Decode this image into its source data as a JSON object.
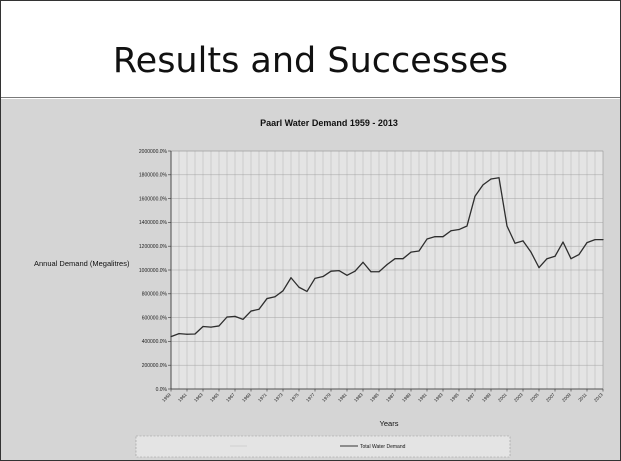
{
  "slide": {
    "title": "Results and Successes"
  },
  "chart_data": {
    "type": "line",
    "title": "Paarl Water Demand 1959 - 2013",
    "xlabel": "Years",
    "ylabel": "Annual Demand (Megalitres)",
    "ylim": [
      0,
      2000000
    ],
    "y_ticks": [
      "0.0%",
      "200000.0%",
      "400000.0%",
      "600000.0%",
      "800000.0%",
      "1000000.0%",
      "1200000.0%",
      "1400000.0%",
      "1600000.0%",
      "1800000.0%",
      "2000000.0%"
    ],
    "x_ticks": [
      "1959",
      "1961",
      "1963",
      "1965",
      "1967",
      "1969",
      "1971",
      "1973",
      "1975",
      "1977",
      "1979",
      "1981",
      "1983",
      "1985",
      "1987",
      "1989",
      "1991",
      "1993",
      "1995",
      "1997",
      "1999",
      "2001",
      "2003",
      "2005",
      "2007",
      "2009",
      "2011",
      "2013"
    ],
    "grid": true,
    "legend_position": "bottom",
    "legend_entries": [
      "Total Water Demand"
    ],
    "series": [
      {
        "name": "Total Water Demand",
        "x": [
          1959,
          1960,
          1961,
          1962,
          1963,
          1964,
          1965,
          1966,
          1967,
          1968,
          1969,
          1970,
          1971,
          1972,
          1973,
          1974,
          1975,
          1976,
          1977,
          1978,
          1979,
          1980,
          1981,
          1982,
          1983,
          1984,
          1985,
          1986,
          1987,
          1988,
          1989,
          1990,
          1991,
          1992,
          1993,
          1994,
          1995,
          1996,
          1997,
          1998,
          1999,
          2000,
          2001,
          2002,
          2003,
          2004,
          2005,
          2006,
          2007,
          2008,
          2009,
          2010,
          2011,
          2012,
          2013
        ],
        "values": [
          440000,
          465000,
          460000,
          462000,
          525000,
          520000,
          530000,
          605000,
          610000,
          585000,
          655000,
          670000,
          760000,
          775000,
          825000,
          935000,
          855000,
          820000,
          930000,
          945000,
          990000,
          995000,
          955000,
          990000,
          1065000,
          985000,
          985000,
          1045000,
          1095000,
          1095000,
          1150000,
          1160000,
          1260000,
          1280000,
          1280000,
          1330000,
          1340000,
          1370000,
          1620000,
          1715000,
          1765000,
          1775000,
          1370000,
          1225000,
          1245000,
          1150000,
          1020000,
          1095000,
          1115000,
          1235000,
          1095000,
          1130000,
          1230000,
          1255000,
          1255000
        ]
      }
    ]
  }
}
